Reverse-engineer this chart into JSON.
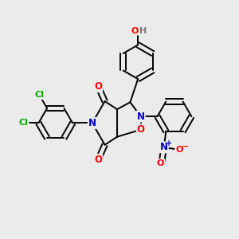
{
  "bg_color": "#ebebeb",
  "bond_color": "#000000",
  "bond_width": 1.4,
  "atom_colors": {
    "C": "#000000",
    "N": "#0000cc",
    "O": "#ff0000",
    "Cl": "#00aa00",
    "H": "#777777"
  },
  "font_size": 8.5,
  "fig_size": [
    3.0,
    3.0
  ],
  "dpi": 100
}
